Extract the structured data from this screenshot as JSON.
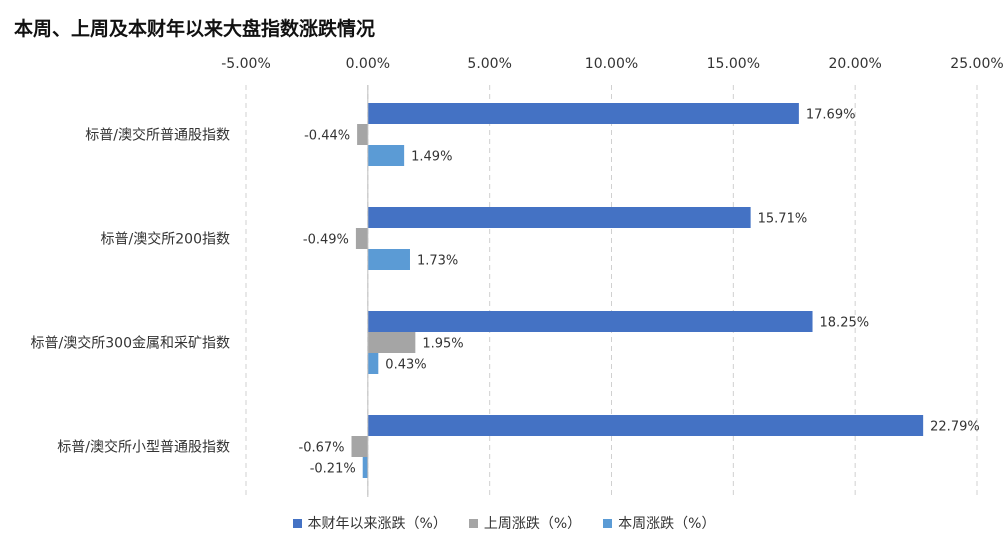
{
  "chart_data": {
    "type": "bar",
    "orientation": "horizontal",
    "title": "本周、上周及本财年以来大盘指数涨跌情况",
    "categories": [
      "标普/澳交所普通股指数",
      "标普/澳交所200指数",
      "标普/澳交所300金属和采矿指数",
      "标普/澳交所小型普通股指数"
    ],
    "series": [
      {
        "name": "本财年以来涨跌（%）",
        "color": "#4472C4",
        "values": [
          17.69,
          15.71,
          18.25,
          22.79
        ],
        "labels": [
          "17.69%",
          "15.71%",
          "18.25%",
          "22.79%"
        ]
      },
      {
        "name": "上周涨跌（%）",
        "color": "#A5A5A5",
        "values": [
          -0.44,
          -0.49,
          1.95,
          -0.67
        ],
        "labels": [
          "-0.44%",
          "-0.49%",
          "1.95%",
          "-0.67%"
        ]
      },
      {
        "name": "本周涨跌（%）",
        "color": "#5B9BD5",
        "values": [
          1.49,
          1.73,
          0.43,
          -0.21
        ],
        "labels": [
          "1.49%",
          "1.73%",
          "0.43%",
          "-0.21%"
        ]
      }
    ],
    "xlim": [
      -5,
      25
    ],
    "x_ticks": [
      -5,
      0,
      5,
      10,
      15,
      20,
      25
    ],
    "x_tick_labels": [
      "-5.00%",
      "0.00%",
      "5.00%",
      "10.00%",
      "15.00%",
      "20.00%",
      "25.00%"
    ],
    "x_axis_position": "top",
    "grid": "vertical dashed",
    "legend_position": "bottom"
  }
}
